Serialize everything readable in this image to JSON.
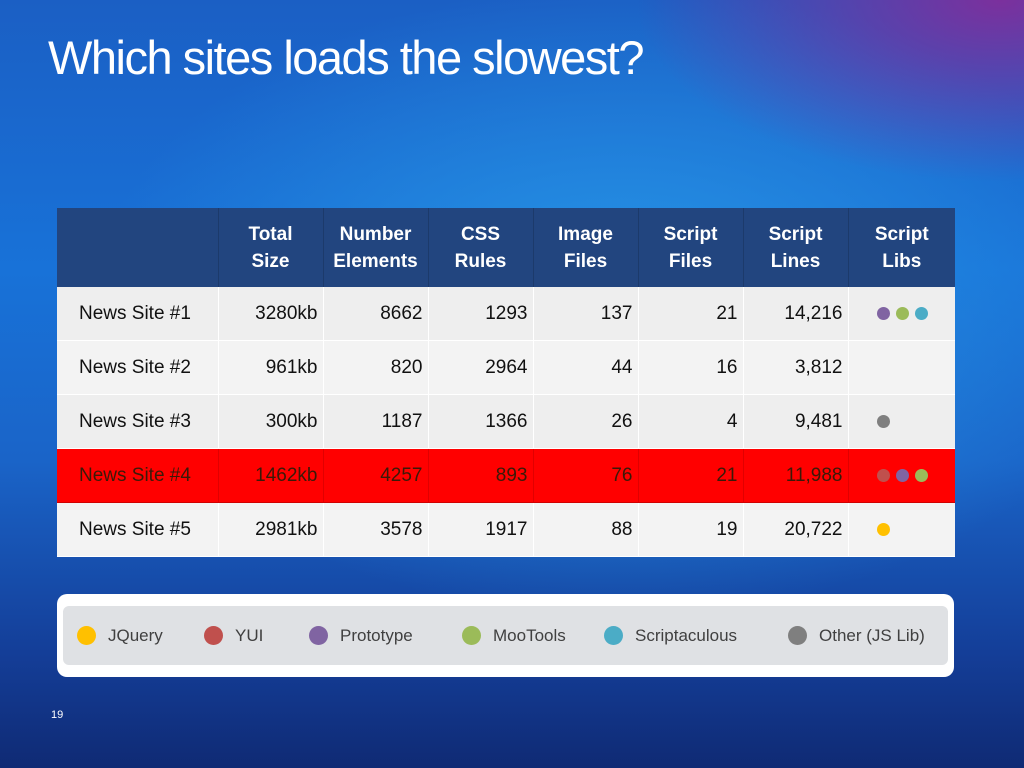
{
  "slide": {
    "title": "Which sites loads the slowest?",
    "page_number": "19"
  },
  "table": {
    "headers": [
      "",
      "Total Size",
      "Number Elements",
      "CSS Rules",
      "Image Files",
      "Script Files",
      "Script Lines",
      "Script Libs"
    ],
    "rows": [
      {
        "name": "News Site #1",
        "total_size": "3280kb",
        "elements": "8662",
        "css_rules": "1293",
        "image_files": "137",
        "script_files": "21",
        "script_lines": "14,216",
        "libs": [
          "Prototype",
          "MooTools",
          "Scriptaculous"
        ],
        "highlighted": false
      },
      {
        "name": "News Site #2",
        "total_size": "961kb",
        "elements": "820",
        "css_rules": "2964",
        "image_files": "44",
        "script_files": "16",
        "script_lines": "3,812",
        "libs": [],
        "highlighted": false
      },
      {
        "name": "News Site #3",
        "total_size": "300kb",
        "elements": "1187",
        "css_rules": "1366",
        "image_files": "26",
        "script_files": "4",
        "script_lines": "9,481",
        "libs": [
          "Other (JS Lib)"
        ],
        "highlighted": false
      },
      {
        "name": "News Site #4",
        "total_size": "1462kb",
        "elements": "4257",
        "css_rules": "893",
        "image_files": "76",
        "script_files": "21",
        "script_lines": "11,988",
        "libs": [
          "YUI",
          "Prototype",
          "MooTools"
        ],
        "highlighted": true
      },
      {
        "name": "News Site #5",
        "total_size": "2981kb",
        "elements": "3578",
        "css_rules": "1917",
        "image_files": "88",
        "script_files": "19",
        "script_lines": "20,722",
        "libs": [
          "JQuery"
        ],
        "highlighted": false
      }
    ]
  },
  "legend": [
    {
      "label": "JQuery",
      "color": "#ffc000"
    },
    {
      "label": "YUI",
      "color": "#c0504d"
    },
    {
      "label": "Prototype",
      "color": "#8064a2"
    },
    {
      "label": "MooTools",
      "color": "#9bbb59"
    },
    {
      "label": "Scriptaculous",
      "color": "#4bacc6"
    },
    {
      "label": "Other (JS Lib)",
      "color": "#7f7f7f"
    }
  ],
  "colors": {
    "header_bg": "#22457f",
    "highlight_row": "#ff0000"
  }
}
